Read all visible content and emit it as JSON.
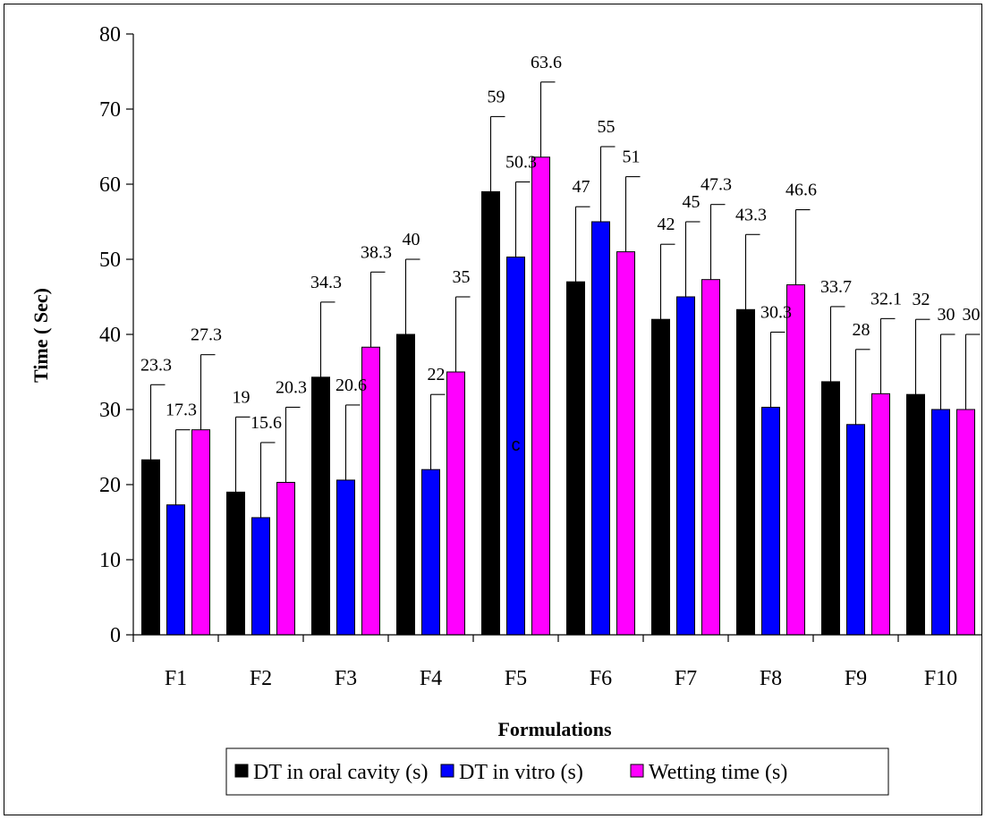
{
  "chart_data": {
    "type": "bar",
    "xlabel": "Formulations",
    "ylabel": "Time ( Sec)",
    "ylim": [
      0,
      80
    ],
    "yticks": [
      0,
      10,
      20,
      30,
      40,
      50,
      60,
      70,
      80
    ],
    "categories": [
      "F1",
      "F2",
      "F3",
      "F4",
      "F5",
      "F6",
      "F7",
      "F8",
      "F9",
      "F10"
    ],
    "series": [
      {
        "name": "DT in oral cavity (s)",
        "color": "#000000",
        "values": [
          23.3,
          19,
          34.3,
          40,
          59,
          47,
          42,
          43.3,
          33.7,
          32
        ],
        "labels": [
          "23.3",
          "19",
          "34.3",
          "40",
          "59",
          "47",
          "42",
          "43.3",
          "33.7",
          "32"
        ],
        "error": 10
      },
      {
        "name": "DT in vitro (s)",
        "color": "#0000ff",
        "values": [
          17.3,
          15.6,
          20.6,
          22,
          50.3,
          55,
          45,
          30.3,
          28,
          30
        ],
        "labels": [
          "17.3",
          "15.6",
          "20.6",
          "22",
          "50.3",
          "55",
          "45",
          "30.3",
          "28",
          "30"
        ],
        "error": 10
      },
      {
        "name": "Wetting time (s)",
        "color": "#ff00ff",
        "values": [
          27.3,
          20.3,
          38.3,
          35,
          63.6,
          51,
          47.3,
          46.6,
          32.1,
          30
        ],
        "labels": [
          "27.3",
          "20.3",
          "38.3",
          "35",
          "63.6",
          "51",
          "47.3",
          "46.6",
          "32.1",
          "30"
        ],
        "error": 10
      }
    ],
    "annotation": "c",
    "grid": false,
    "legend_position": "bottom"
  }
}
